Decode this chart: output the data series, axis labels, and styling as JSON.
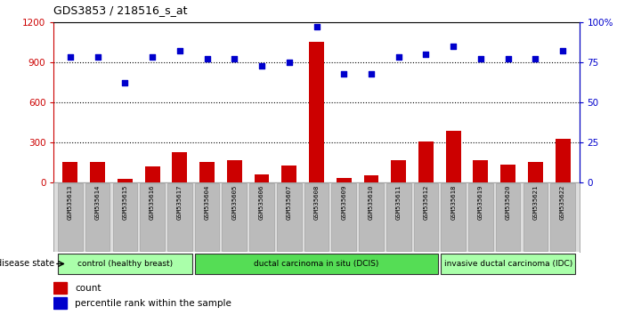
{
  "title": "GDS3853 / 218516_s_at",
  "samples": [
    "GSM535613",
    "GSM535614",
    "GSM535615",
    "GSM535616",
    "GSM535617",
    "GSM535604",
    "GSM535605",
    "GSM535606",
    "GSM535607",
    "GSM535608",
    "GSM535609",
    "GSM535610",
    "GSM535611",
    "GSM535612",
    "GSM535618",
    "GSM535619",
    "GSM535620",
    "GSM535621",
    "GSM535622"
  ],
  "counts": [
    155,
    155,
    30,
    120,
    230,
    155,
    170,
    60,
    130,
    1050,
    35,
    55,
    170,
    310,
    390,
    170,
    135,
    155,
    330
  ],
  "percentiles": [
    78,
    78,
    62,
    78,
    82,
    77,
    77,
    73,
    75,
    97,
    68,
    68,
    78,
    80,
    85,
    77,
    77,
    77,
    82
  ],
  "ylim_left": [
    0,
    1200
  ],
  "ylim_right": [
    0,
    100
  ],
  "yticks_left": [
    0,
    300,
    600,
    900,
    1200
  ],
  "yticks_right": [
    0,
    25,
    50,
    75,
    100
  ],
  "bar_color": "#cc0000",
  "dot_color": "#0000cc",
  "groups": [
    {
      "label": "control (healthy breast)",
      "start": 0,
      "end": 5,
      "color": "#aaffaa"
    },
    {
      "label": "ductal carcinoma in situ (DCIS)",
      "start": 5,
      "end": 14,
      "color": "#55dd55"
    },
    {
      "label": "invasive ductal carcinoma (IDC)",
      "start": 14,
      "end": 19,
      "color": "#aaffaa"
    }
  ],
  "legend_count_label": "count",
  "legend_pct_label": "percentile rank within the sample",
  "disease_state_label": "disease state",
  "background_color": "#ffffff",
  "plot_bg_color": "#ffffff",
  "tick_label_bg": "#bbbbbb",
  "grid_lines": [
    300,
    600,
    900
  ]
}
